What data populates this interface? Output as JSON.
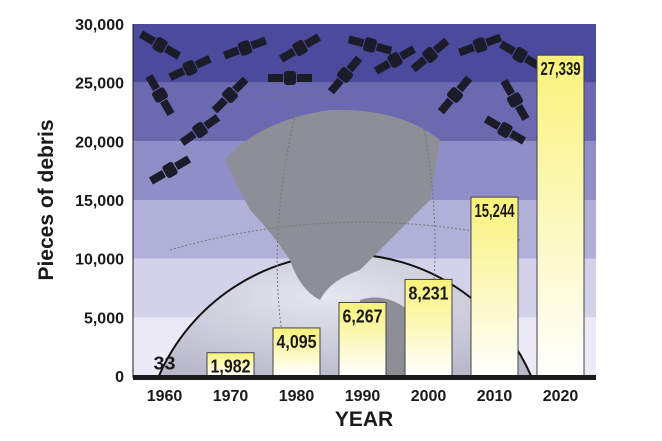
{
  "chart_data": {
    "type": "bar",
    "title": "",
    "xlabel": "YEAR",
    "ylabel": "Pieces of debris",
    "categories": [
      "1960",
      "1970",
      "1980",
      "1990",
      "2000",
      "2010",
      "2020"
    ],
    "values": [
      33,
      1982,
      4095,
      6267,
      8231,
      15244,
      27339
    ],
    "data_labels": [
      "33",
      "1,982",
      "4,095",
      "6,267",
      "8,231",
      "15,244",
      "27,339"
    ],
    "ylim": [
      0,
      30000
    ],
    "yticks": [
      0,
      5000,
      10000,
      15000,
      20000,
      25000,
      30000
    ],
    "ytick_labels": [
      "0",
      "5,000",
      "10,000",
      "15,000",
      "20,000",
      "25,000",
      "30,000"
    ],
    "grid": false,
    "legend": "none",
    "background": "purple bands with globe and satellite illustrations",
    "colors": {
      "bar_top": "#f8f27a",
      "bar_bottom": "#ffffff",
      "band_dark": "#4b4a9c",
      "band_light": "#ebeaf6"
    }
  }
}
